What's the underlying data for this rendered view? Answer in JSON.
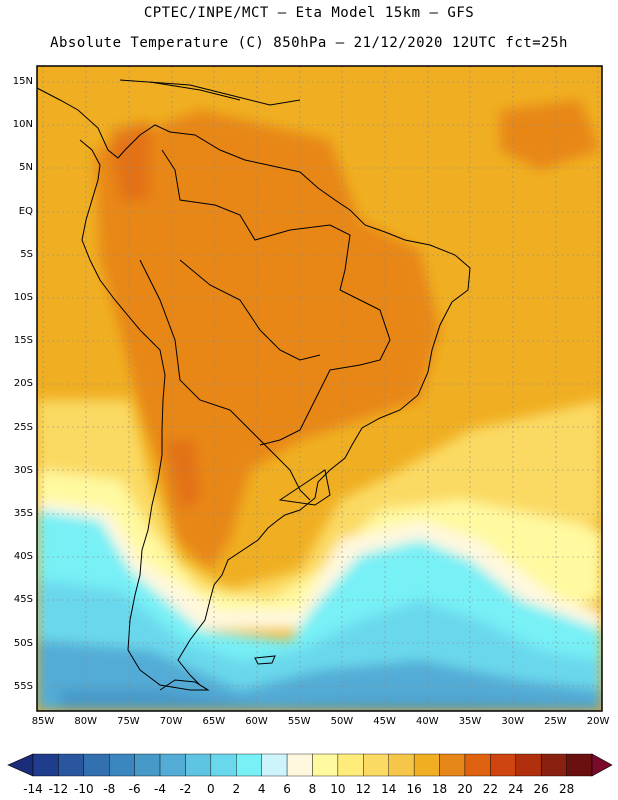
{
  "header": {
    "line1": "CPTEC/INPE/MCT –  Eta Model 15km – GFS",
    "line2": "Absolute Temperature (C) 850hPa – 21/12/2020 12UTC fct=25h"
  },
  "map": {
    "lat_labels": [
      "15N",
      "10N",
      "5N",
      "EQ",
      "5S",
      "10S",
      "15S",
      "20S",
      "25S",
      "30S",
      "35S",
      "40S",
      "45S",
      "50S",
      "55S"
    ],
    "lon_labels": [
      "85W",
      "80W",
      "75W",
      "70W",
      "65W",
      "60W",
      "55W",
      "50W",
      "45W",
      "40W",
      "35W",
      "30W",
      "25W",
      "20W"
    ]
  },
  "colorbar": {
    "labels": [
      "-14",
      "-12",
      "-10",
      "-8",
      "-6",
      "-4",
      "-2",
      "0",
      "2",
      "4",
      "6",
      "8",
      "10",
      "12",
      "14",
      "16",
      "18",
      "20",
      "22",
      "24",
      "26",
      "28"
    ],
    "colors": [
      "#1f3d8c",
      "#2a56a0",
      "#3370b0",
      "#3b86bf",
      "#4799c8",
      "#52acd6",
      "#5fc3e2",
      "#6ad8ec",
      "#77f0f6",
      "#cdf3fb",
      "#fff8de",
      "#fff9a0",
      "#ffec7a",
      "#fbda63",
      "#f5c64a",
      "#f0af22",
      "#e88719",
      "#df6210",
      "#cf4510",
      "#b0300e",
      "#8a2010",
      "#6a1010"
    ],
    "under_color": "#1b2c7a",
    "over_color": "#7a0a2a"
  }
}
